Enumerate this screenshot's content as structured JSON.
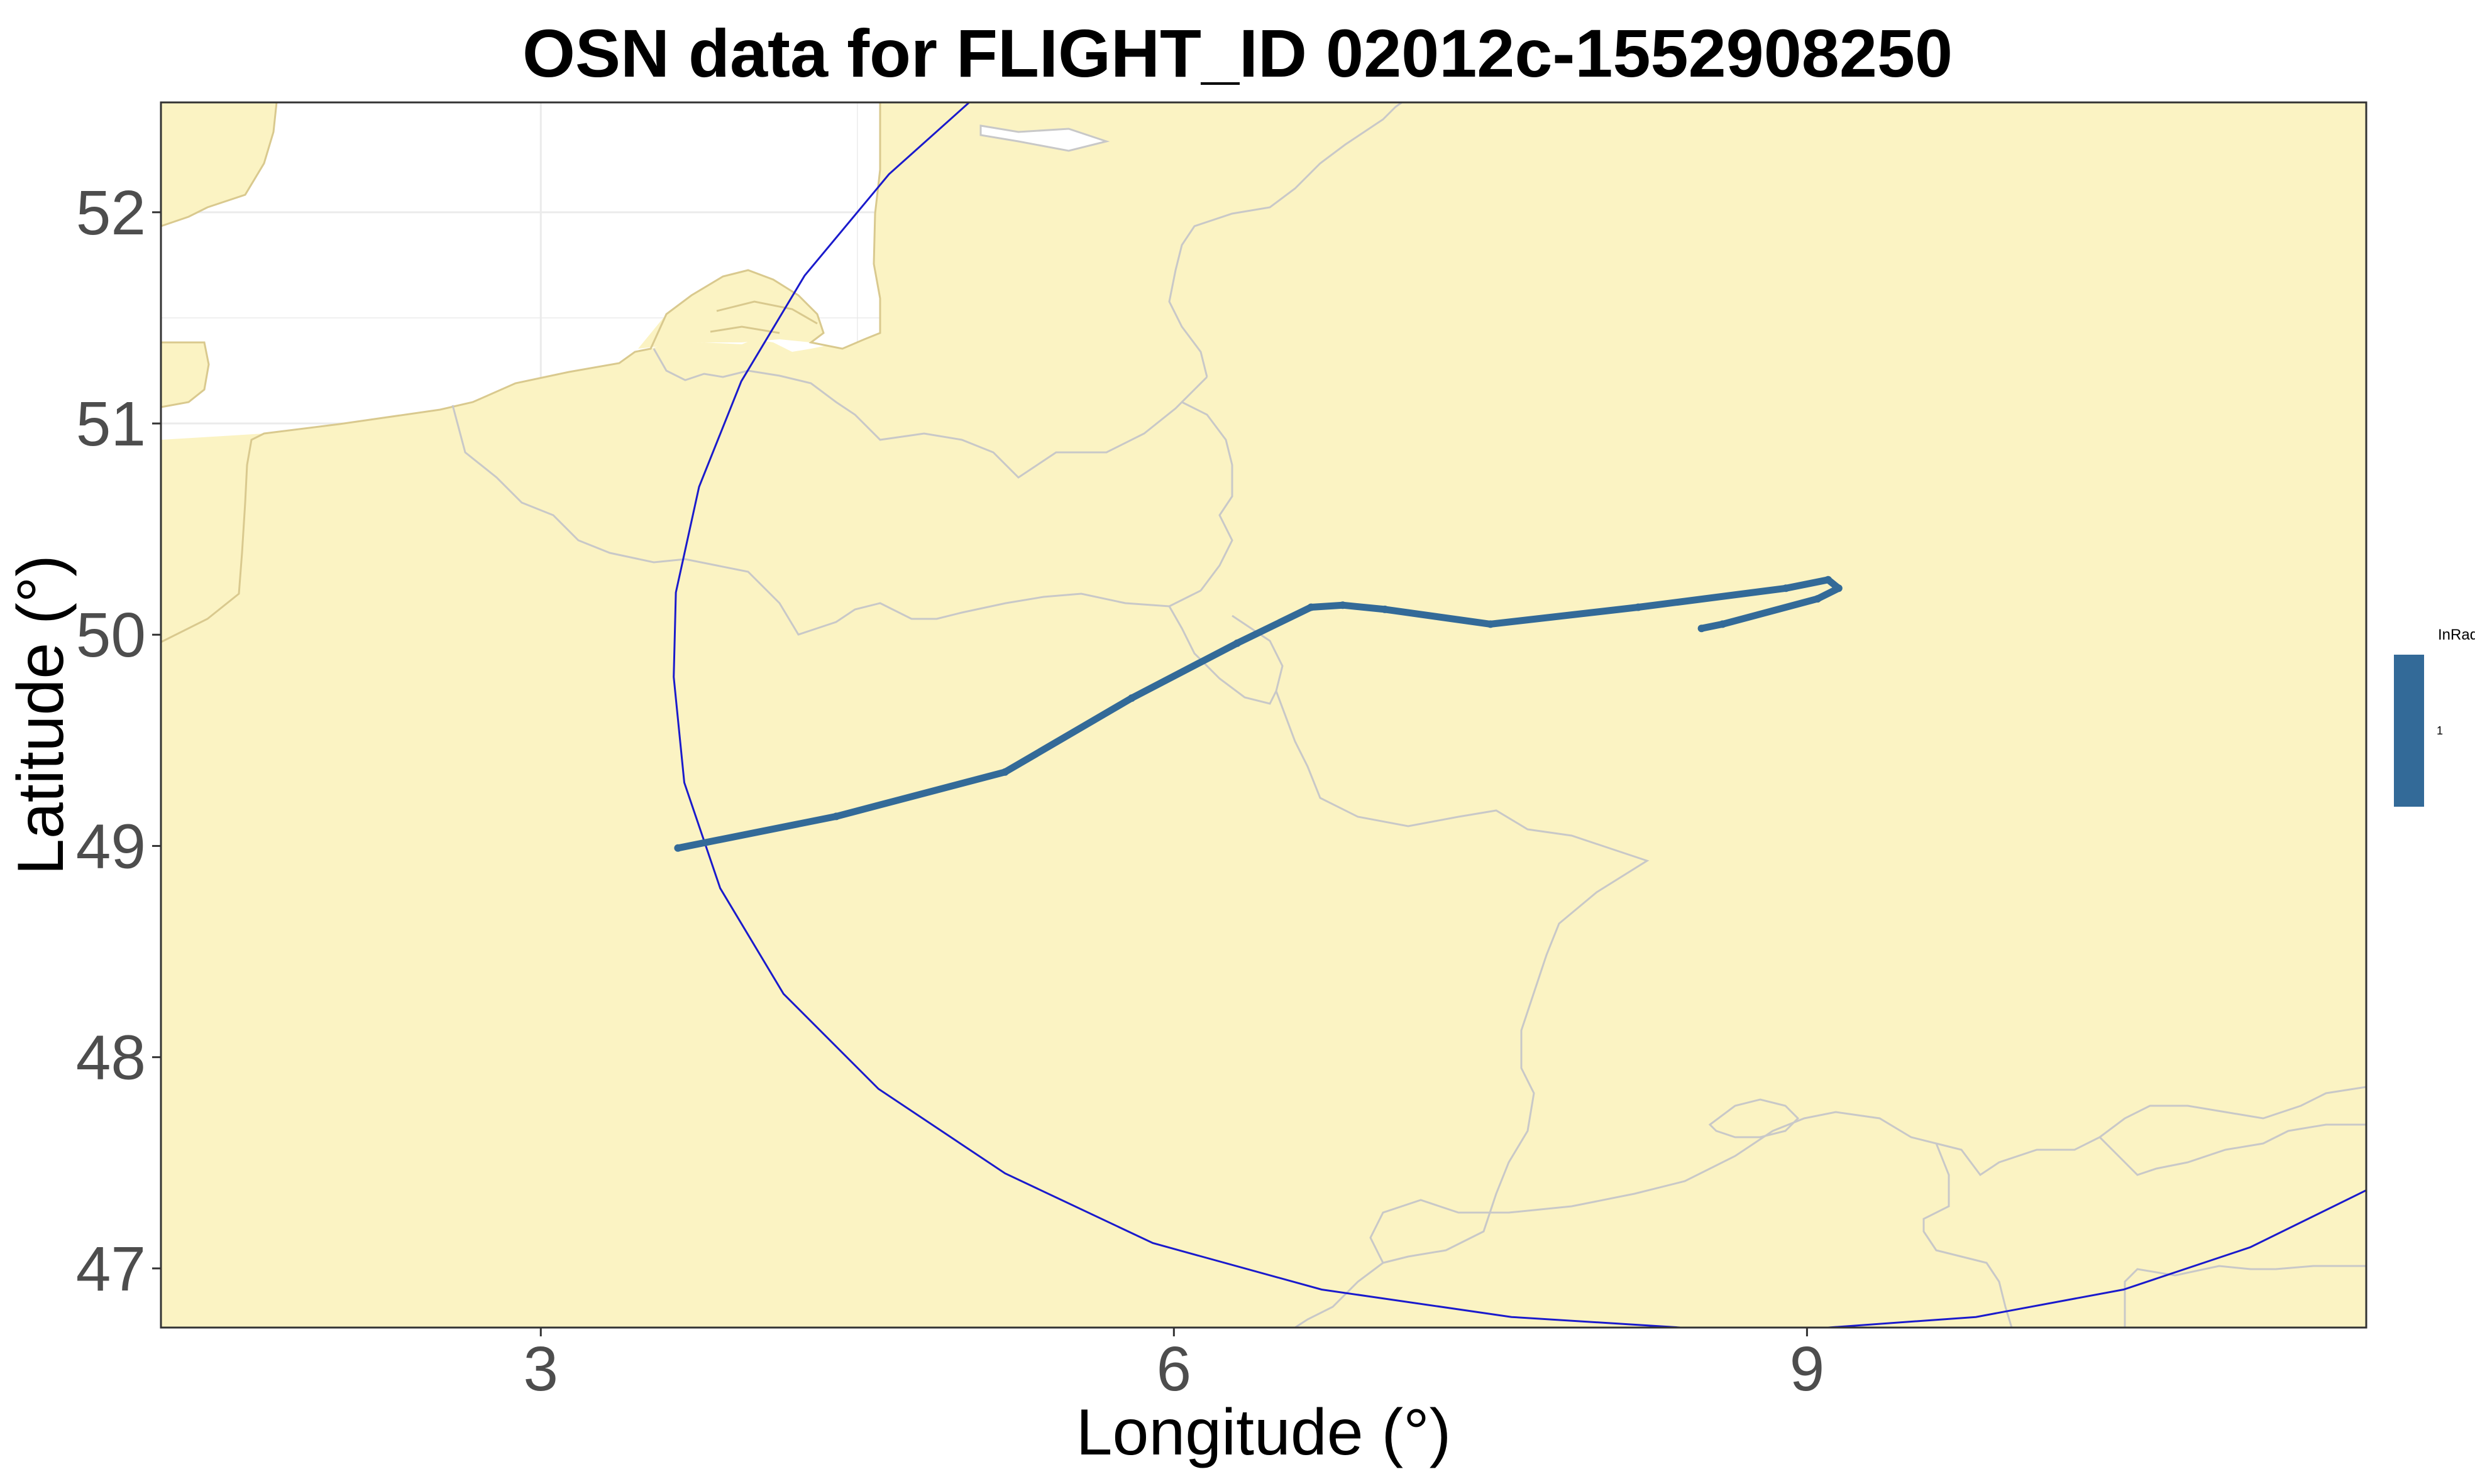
{
  "chart_data": {
    "type": "map",
    "title": "OSN data for FLIGHT_ID 02012c-1552908250",
    "xlabel": "Longitude (°)",
    "ylabel": "Latitude (°)",
    "xlim": [
      1.2,
      11.65
    ],
    "ylim": [
      46.72,
      52.52
    ],
    "x_ticks": [
      3,
      6,
      9
    ],
    "y_ticks": [
      47,
      48,
      49,
      50,
      51,
      52
    ],
    "grid": true,
    "colors": {
      "land": "#fbf3c3",
      "sea": "#ffffff",
      "borders": "#c8c8c8",
      "track": "#336a98",
      "radius_circle": "#1a1acc"
    },
    "legend": {
      "title": "InRadius",
      "entries": [
        "1"
      ],
      "placement": "right"
    },
    "radius_circle": {
      "path": [
        [
          5.03,
          52.52
        ],
        [
          4.65,
          52.18
        ],
        [
          4.25,
          51.7
        ],
        [
          3.95,
          51.2
        ],
        [
          3.75,
          50.7
        ],
        [
          3.64,
          50.2
        ],
        [
          3.63,
          49.8
        ],
        [
          3.68,
          49.3
        ],
        [
          3.85,
          48.8
        ],
        [
          4.15,
          48.3
        ],
        [
          4.6,
          47.85
        ],
        [
          5.2,
          47.45
        ],
        [
          5.9,
          47.12
        ],
        [
          6.7,
          46.9
        ],
        [
          7.6,
          46.77
        ],
        [
          8.4,
          46.72
        ],
        [
          9.1,
          46.72
        ],
        [
          9.8,
          46.77
        ],
        [
          10.5,
          46.9
        ],
        [
          11.1,
          47.1
        ],
        [
          11.65,
          47.37
        ]
      ]
    },
    "flight_track": {
      "name": "1",
      "path": [
        [
          3.65,
          48.99
        ],
        [
          4.4,
          49.14
        ],
        [
          5.2,
          49.35
        ],
        [
          5.8,
          49.7
        ],
        [
          6.3,
          49.96
        ],
        [
          6.65,
          50.13
        ],
        [
          6.8,
          50.14
        ],
        [
          7.0,
          50.12
        ],
        [
          7.5,
          50.05
        ],
        [
          8.2,
          50.13
        ],
        [
          8.9,
          50.22
        ],
        [
          9.1,
          50.26
        ],
        [
          9.15,
          50.22
        ],
        [
          9.05,
          50.17
        ],
        [
          8.6,
          50.05
        ],
        [
          8.5,
          50.03
        ]
      ]
    }
  }
}
